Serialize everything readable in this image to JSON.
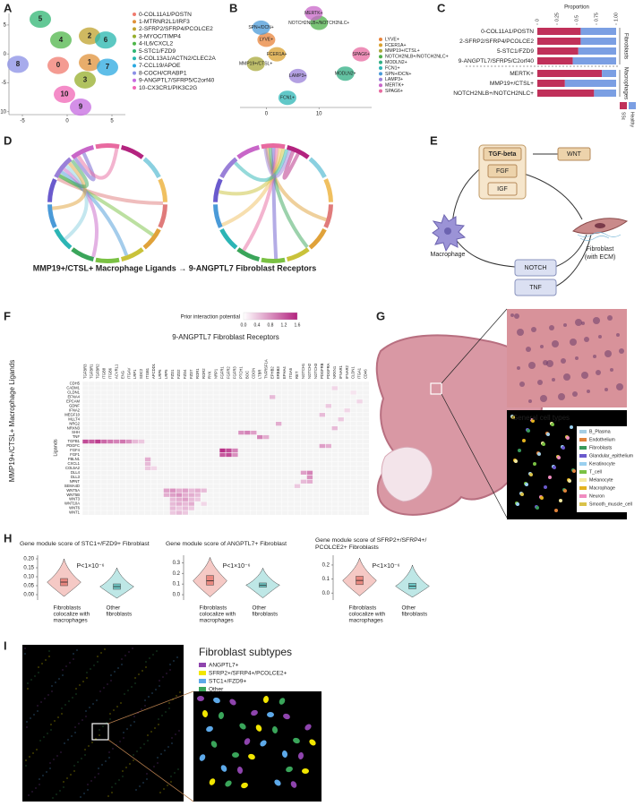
{
  "panel_letters": [
    "A",
    "B",
    "C",
    "D",
    "E",
    "F",
    "G",
    "H",
    "I"
  ],
  "chart_data": [
    {
      "type": "cluster",
      "xlim": [
        -6.5,
        6.5
      ],
      "xticks": [
        -5,
        0,
        5
      ],
      "ylim": [
        -10.5,
        7
      ],
      "yticks": [
        -10,
        -5,
        0,
        5
      ],
      "series": [
        {
          "name": "0-COL11A1/POSTN",
          "label": "0",
          "color": "#f07a6e",
          "x": [
            -1
          ],
          "values": [
            -2
          ]
        },
        {
          "name": "1-MTRNR2L1/IRF3",
          "label": "1",
          "color": "#e0913a",
          "x": [
            2.5
          ],
          "values": [
            -1.5
          ]
        },
        {
          "name": "2-SFRP2/SFRP4/PCOLCE2",
          "label": "2",
          "color": "#bfa22c",
          "x": [
            2.5
          ],
          "values": [
            3.1
          ]
        },
        {
          "name": "3-MYOC/TIMP4",
          "label": "3",
          "color": "#95ae2a",
          "x": [
            2
          ],
          "values": [
            -4.5
          ]
        },
        {
          "name": "4-IL6/CXCL2",
          "label": "4",
          "color": "#4fb649",
          "x": [
            -0.7
          ],
          "values": [
            2.4
          ]
        },
        {
          "name": "5-STC1/FZD9",
          "label": "5",
          "color": "#2fb573",
          "x": [
            -3
          ],
          "values": [
            6
          ]
        },
        {
          "name": "6-COL13A1/ACTN2/CLEC2A",
          "label": "6",
          "color": "#25b5ae",
          "x": [
            4.3
          ],
          "values": [
            2.4
          ]
        },
        {
          "name": "7-CCL19/APOE",
          "label": "7",
          "color": "#2aa8e0",
          "x": [
            4.5
          ],
          "values": [
            -2.3
          ]
        },
        {
          "name": "8-COCH/CRABP1",
          "label": "8",
          "color": "#8a8fe6",
          "x": [
            -5.5
          ],
          "values": [
            -1.8
          ]
        },
        {
          "name": "9-ANGPTL7/SFRP5/C2orf40",
          "label": "9",
          "color": "#c569e0",
          "x": [
            1.5
          ],
          "values": [
            -9.2
          ]
        },
        {
          "name": "10-CX3CR1/PIK3C2G",
          "label": "10",
          "color": "#f065b5",
          "x": [
            -0.3
          ],
          "values": [
            -7
          ]
        }
      ]
    },
    {
      "type": "cluster",
      "xlim": [
        -5,
        20
      ],
      "xticks": [
        0,
        10
      ],
      "ylim": [
        -8,
        12
      ],
      "yticks": [],
      "series": [
        {
          "name": "LYVE+",
          "color": "#e8833a",
          "x": [
            0
          ],
          "values": [
            6
          ]
        },
        {
          "name": "FCER1A+",
          "color": "#d9a02e",
          "x": [
            2
          ],
          "values": [
            3
          ]
        },
        {
          "name": "MMP19+/CTSL+",
          "color": "#a8a83a",
          "x": [
            -2
          ],
          "values": [
            1
          ]
        },
        {
          "name": "NOTCH2NLB+/NOTCH2NLC+",
          "color": "#4db04a",
          "x": [
            10
          ],
          "values": [
            9.5
          ]
        },
        {
          "name": "MODLN2+",
          "color": "#2fae83",
          "x": [
            15
          ],
          "values": [
            -1
          ]
        },
        {
          "name": "FCN1+",
          "color": "#2cb5b5",
          "x": [
            4
          ],
          "values": [
            -6
          ]
        },
        {
          "name": "SPN+/DCN+",
          "color": "#4a9ad8",
          "x": [
            -1
          ],
          "values": [
            8.5
          ]
        },
        {
          "name": "LAMP3+",
          "color": "#9a80d8",
          "x": [
            6
          ],
          "values": [
            -1.5
          ]
        },
        {
          "name": "MERTK+",
          "color": "#c866c8",
          "x": [
            9
          ],
          "values": [
            11.5
          ]
        },
        {
          "name": "SPAG6+",
          "color": "#e86aa0",
          "x": [
            18
          ],
          "values": [
            3
          ]
        }
      ]
    },
    {
      "type": "stacked_bar",
      "xlabel": "Proportion",
      "xlim": [
        0,
        1
      ],
      "xticks": [
        0,
        0.25,
        0.5,
        0.75,
        {
          "value": 1,
          "label": "1.00"
        }
      ],
      "groups": [
        {
          "name": "Fibroblasts",
          "categories": [
            "0-COL11A1/POSTN",
            "2-SFRP2/SFRP4/PCOLCE2",
            "5-STC1/FZD9",
            "9-ANGPTL7/SFRP5/C2orf40"
          ]
        },
        {
          "name": "Macrophages",
          "categories": [
            "MERTK+",
            "MMP19+/CTSL+",
            "NOTCH2NLB+/NOTCH2NLC+"
          ]
        }
      ],
      "series": [
        {
          "name": "SSc",
          "color": "#c0305a",
          "values": [
            0.55,
            0.55,
            0.52,
            0.45,
            0.82,
            0.35,
            0.72
          ]
        },
        {
          "name": "Healthy",
          "color": "#7b9fe3",
          "values": [
            0.45,
            0.45,
            0.48,
            0.55,
            0.18,
            0.65,
            0.28
          ]
        }
      ]
    },
    {
      "type": "heatmap",
      "title": "9-ANGPTL7 Fibroblast Receptors",
      "ylabel": "MMP19+/CTSL+ Macrophage Ligands",
      "row_title": "Ligands",
      "colorbar_label": "Prior interaction potential",
      "clim": [
        0,
        1.6
      ],
      "cticks": [
        {
          "value": 0,
          "label": "0.0"
        },
        0.4,
        0.8,
        1.2,
        1.6
      ],
      "colors": [
        "#ffffff",
        "#b3237f"
      ],
      "rows": [
        "CDH5",
        "CADM1",
        "CLDN1",
        "EFNA4",
        "EPCAM",
        "GDNF",
        "IFNA2",
        "MEGF10",
        "MLLT4",
        "NRG2",
        "NRXN3",
        "SHH",
        "TNF",
        "TGFB1",
        "PDGFC",
        "FGF4",
        "FGF1",
        "FBLN1",
        "CXCL1",
        "COL5A2",
        "DLL4",
        "DLL3",
        "NPNT",
        "SEMA4D",
        "WNT5A",
        "WNT5B",
        "WNT3",
        "WNT10A",
        "WNT6",
        "WNT1"
      ],
      "columns": [
        "TGFBR3",
        "TGFBR1",
        "TGFBR2",
        "ITGB8",
        "ITGB6",
        "ACVRL1",
        "ENG",
        "ITGAV",
        "LRP1",
        "SDC2",
        "ITGB1",
        "APCDD1",
        "LRP6",
        "LRP5",
        "FZD1",
        "FZD2",
        "FZD4",
        "FZD7",
        "ROR1",
        "ROR2",
        "RYK",
        "NRP1",
        "FGFR1",
        "FGFR2",
        "FGFR3",
        "PTCH1",
        "BOC",
        "CDON",
        "LTBR",
        "TNFRSF1A",
        "EPHB2",
        "ERBB3",
        "EPHA4",
        "ITGA5",
        "RET",
        "NOTCH1",
        "NOTCH2",
        "NOTCH3",
        "PDGFRB",
        "PDGFRA",
        "NRXN1",
        "IFNAR1",
        "IFNAR2",
        "CLDN1",
        "ITGA1",
        "CD46"
      ],
      "cells": [
        [
          13,
          0,
          1.3
        ],
        [
          13,
          1,
          1.2
        ],
        [
          13,
          2,
          1.4
        ],
        [
          13,
          3,
          1.1
        ],
        [
          13,
          4,
          1.0
        ],
        [
          13,
          5,
          0.9
        ],
        [
          13,
          6,
          1.0
        ],
        [
          13,
          7,
          0.8
        ],
        [
          13,
          8,
          0.5
        ],
        [
          13,
          9,
          0.4
        ],
        [
          1,
          40,
          0.3
        ],
        [
          2,
          43,
          0.2
        ],
        [
          3,
          30,
          0.5
        ],
        [
          4,
          44,
          0.3
        ],
        [
          5,
          39,
          0.4
        ],
        [
          6,
          42,
          0.3
        ],
        [
          7,
          38,
          0.5
        ],
        [
          8,
          41,
          0.4
        ],
        [
          9,
          31,
          0.6
        ],
        [
          10,
          40,
          0.5
        ],
        [
          11,
          25,
          0.8
        ],
        [
          11,
          26,
          0.9
        ],
        [
          11,
          27,
          0.7
        ],
        [
          12,
          28,
          0.9
        ],
        [
          12,
          29,
          0.6
        ],
        [
          14,
          38,
          0.7
        ],
        [
          14,
          39,
          0.6
        ],
        [
          15,
          22,
          1.5
        ],
        [
          15,
          23,
          1.3
        ],
        [
          15,
          24,
          0.9
        ],
        [
          16,
          22,
          1.2
        ],
        [
          16,
          23,
          1.3
        ],
        [
          16,
          24,
          0.8
        ],
        [
          17,
          10,
          0.6
        ],
        [
          18,
          10,
          0.5
        ],
        [
          19,
          10,
          0.4
        ],
        [
          19,
          11,
          0.3
        ],
        [
          20,
          35,
          0.7
        ],
        [
          20,
          36,
          0.9
        ],
        [
          21,
          36,
          0.8
        ],
        [
          22,
          35,
          0.5
        ],
        [
          22,
          36,
          0.6
        ],
        [
          23,
          34,
          0.4
        ],
        [
          24,
          13,
          0.7
        ],
        [
          24,
          14,
          0.8
        ],
        [
          24,
          15,
          0.6
        ],
        [
          24,
          16,
          0.7
        ],
        [
          24,
          17,
          0.5
        ],
        [
          24,
          18,
          0.6
        ],
        [
          24,
          19,
          0.5
        ],
        [
          25,
          13,
          0.6
        ],
        [
          25,
          14,
          0.7
        ],
        [
          25,
          15,
          0.8
        ],
        [
          25,
          16,
          0.6
        ],
        [
          25,
          17,
          0.6
        ],
        [
          25,
          18,
          0.5
        ],
        [
          26,
          14,
          0.5
        ],
        [
          26,
          15,
          0.6
        ],
        [
          26,
          16,
          0.7
        ],
        [
          26,
          17,
          0.5
        ],
        [
          26,
          18,
          0.4
        ],
        [
          27,
          14,
          0.5
        ],
        [
          27,
          15,
          0.6
        ],
        [
          27,
          16,
          0.5
        ],
        [
          27,
          17,
          0.6
        ],
        [
          27,
          19,
          0.3
        ],
        [
          28,
          14,
          0.5
        ],
        [
          28,
          15,
          0.4
        ],
        [
          28,
          16,
          0.5
        ],
        [
          28,
          17,
          0.4
        ],
        [
          29,
          14,
          0.4
        ],
        [
          29,
          15,
          0.5
        ],
        [
          29,
          16,
          0.4
        ]
      ]
    },
    {
      "type": "violin",
      "title": [
        "Gene module score of STC1+/FZD9+ Fibroblast"
      ],
      "annotation": "P<1×10⁻⁶",
      "ylim": [
        -0.03,
        0.22
      ],
      "yticks": [
        {
          "value": 0,
          "label": "0.00"
        },
        0.05,
        {
          "value": 0.1,
          "label": "0.10"
        },
        0.15,
        {
          "value": 0.2,
          "label": "0.20"
        }
      ],
      "categories": [
        [
          "Fibroblasts",
          "colocalize with",
          "macrophages"
        ],
        [
          "Other",
          "fibroblasts"
        ]
      ],
      "colors": [
        "#e8877f",
        "#6ec9c7"
      ],
      "min": [
        -0.01,
        -0.02
      ],
      "q1": [
        0.05,
        0.03
      ],
      "median": [
        0.07,
        0.045
      ],
      "q3": [
        0.09,
        0.06
      ],
      "max": [
        0.2,
        0.15
      ]
    },
    {
      "type": "violin",
      "title": [
        "Gene module score of ANGPTL7+ Fibroblast"
      ],
      "annotation": "P<1×10⁻⁶",
      "ylim": [
        -0.05,
        0.37
      ],
      "yticks": [
        {
          "value": 0,
          "label": "0.0"
        },
        0.1,
        0.2,
        0.3
      ],
      "categories": [
        [
          "Fibroblasts",
          "colocalize with",
          "macrophages"
        ],
        [
          "Other",
          "fibroblasts"
        ]
      ],
      "colors": [
        "#e8877f",
        "#6ec9c7"
      ],
      "min": [
        -0.02,
        -0.03
      ],
      "q1": [
        0.09,
        0.07
      ],
      "median": [
        0.13,
        0.09
      ],
      "q3": [
        0.18,
        0.11
      ],
      "max": [
        0.35,
        0.25
      ]
    },
    {
      "type": "violin",
      "title": [
        "Gene module score of SFRP2+/SFRP4+/",
        "PCOLCE2+ Fibroblasts"
      ],
      "annotation": "P<1×10⁻⁶",
      "ylim": [
        -0.05,
        0.27
      ],
      "yticks": [
        {
          "value": 0,
          "label": "0.0"
        },
        0.1,
        0.2
      ],
      "categories": [
        [
          "Fibroblasts",
          "colocalize with",
          "macrophages"
        ],
        [
          "Other",
          "fibroblasts"
        ]
      ],
      "colors": [
        "#e8877f",
        "#6ec9c7"
      ],
      "min": [
        -0.02,
        -0.03
      ],
      "q1": [
        0.06,
        0.03
      ],
      "median": [
        0.09,
        0.05
      ],
      "q3": [
        0.12,
        0.07
      ],
      "max": [
        0.25,
        0.2
      ]
    }
  ],
  "panel_d": {
    "caption": "MMP19+/CTSL+ Macrophage Ligands → 9-ANGPTL7 Fibroblast Receptors"
  },
  "panel_e": {
    "signals": [
      "TGF-beta",
      "FGF",
      "IGF",
      "WNT",
      "NOTCH",
      "TNF"
    ],
    "source": "Macrophage",
    "target": [
      "Fibroblast",
      "(with ECM)"
    ]
  },
  "panel_g": {
    "legend_title": "General cell types",
    "cell_types": [
      {
        "name": "B_Plasma",
        "color": "#a6cee3"
      },
      {
        "name": "Endothelium",
        "color": "#e0823a"
      },
      {
        "name": "Fibroblasts",
        "color": "#3a9a5a"
      },
      {
        "name": "Glandular_epithelium",
        "color": "#6a5acd"
      },
      {
        "name": "Keratinocyte",
        "color": "#9ad0f0"
      },
      {
        "name": "T_cell",
        "color": "#7ac143"
      },
      {
        "name": "Melanocyte",
        "color": "#f3e9a0"
      },
      {
        "name": "Macrophage",
        "color": "#e3b21e"
      },
      {
        "name": "Neuron",
        "color": "#f08cc0"
      },
      {
        "name": "Smooth_muscle_cell",
        "color": "#d9c24a"
      }
    ]
  },
  "panel_i": {
    "legend_title": "Fibroblast subtypes",
    "subtypes": [
      {
        "name": "ANGPTL7+",
        "color": "#8e44ad"
      },
      {
        "name": "SFRP2+/SFRP4+/PCOLCE2+",
        "color": "#f2e600"
      },
      {
        "name": "STC1+/FZD9+",
        "color": "#5da9e9"
      },
      {
        "name": "Other",
        "color": "#3aa55a"
      }
    ]
  }
}
